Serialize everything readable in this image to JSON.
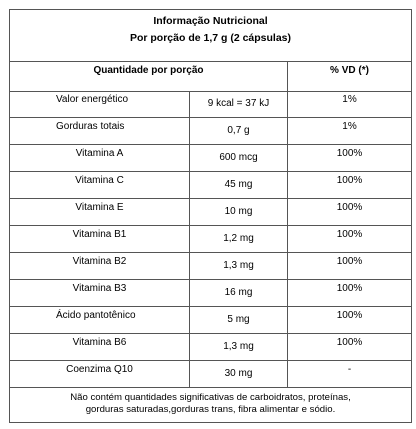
{
  "title": {
    "line1": "Informação Nutricional",
    "line2": "Por porção de 1,7 g (2 cápsulas)"
  },
  "header": {
    "quantity": "Quantidade por porção",
    "vd": "% VD (*)"
  },
  "rows": [
    {
      "name": "Valor energético",
      "amount": "9 kcal = 37 kJ",
      "vd": "1%"
    },
    {
      "name": "Gorduras totais",
      "amount": "0,7 g",
      "vd": "1%"
    },
    {
      "name": "Vitamina A",
      "amount": "600 mcg",
      "vd": "100%"
    },
    {
      "name": "Vitamina C",
      "amount": "45 mg",
      "vd": "100%"
    },
    {
      "name": "Vitamina E",
      "amount": "10 mg",
      "vd": "100%"
    },
    {
      "name": "Vitamina B1",
      "amount": "1,2 mg",
      "vd": "100%"
    },
    {
      "name": "Vitamina B2",
      "amount": "1,3 mg",
      "vd": "100%"
    },
    {
      "name": "Vitamina B3",
      "amount": "16 mg",
      "vd": "100%"
    },
    {
      "name": "Ácido pantotênico",
      "amount": "5 mg",
      "vd": "100%"
    },
    {
      "name": "Vitamina B6",
      "amount": "1,3 mg",
      "vd": "100%"
    },
    {
      "name": "Coenzima Q10",
      "amount": "30 mg",
      "vd": "-"
    }
  ],
  "footer": {
    "line1": "Não contém quantidades significativas de carboidratos, proteínas,",
    "line2": "gorduras saturadas,gorduras trans, fibra alimentar e sódio."
  }
}
